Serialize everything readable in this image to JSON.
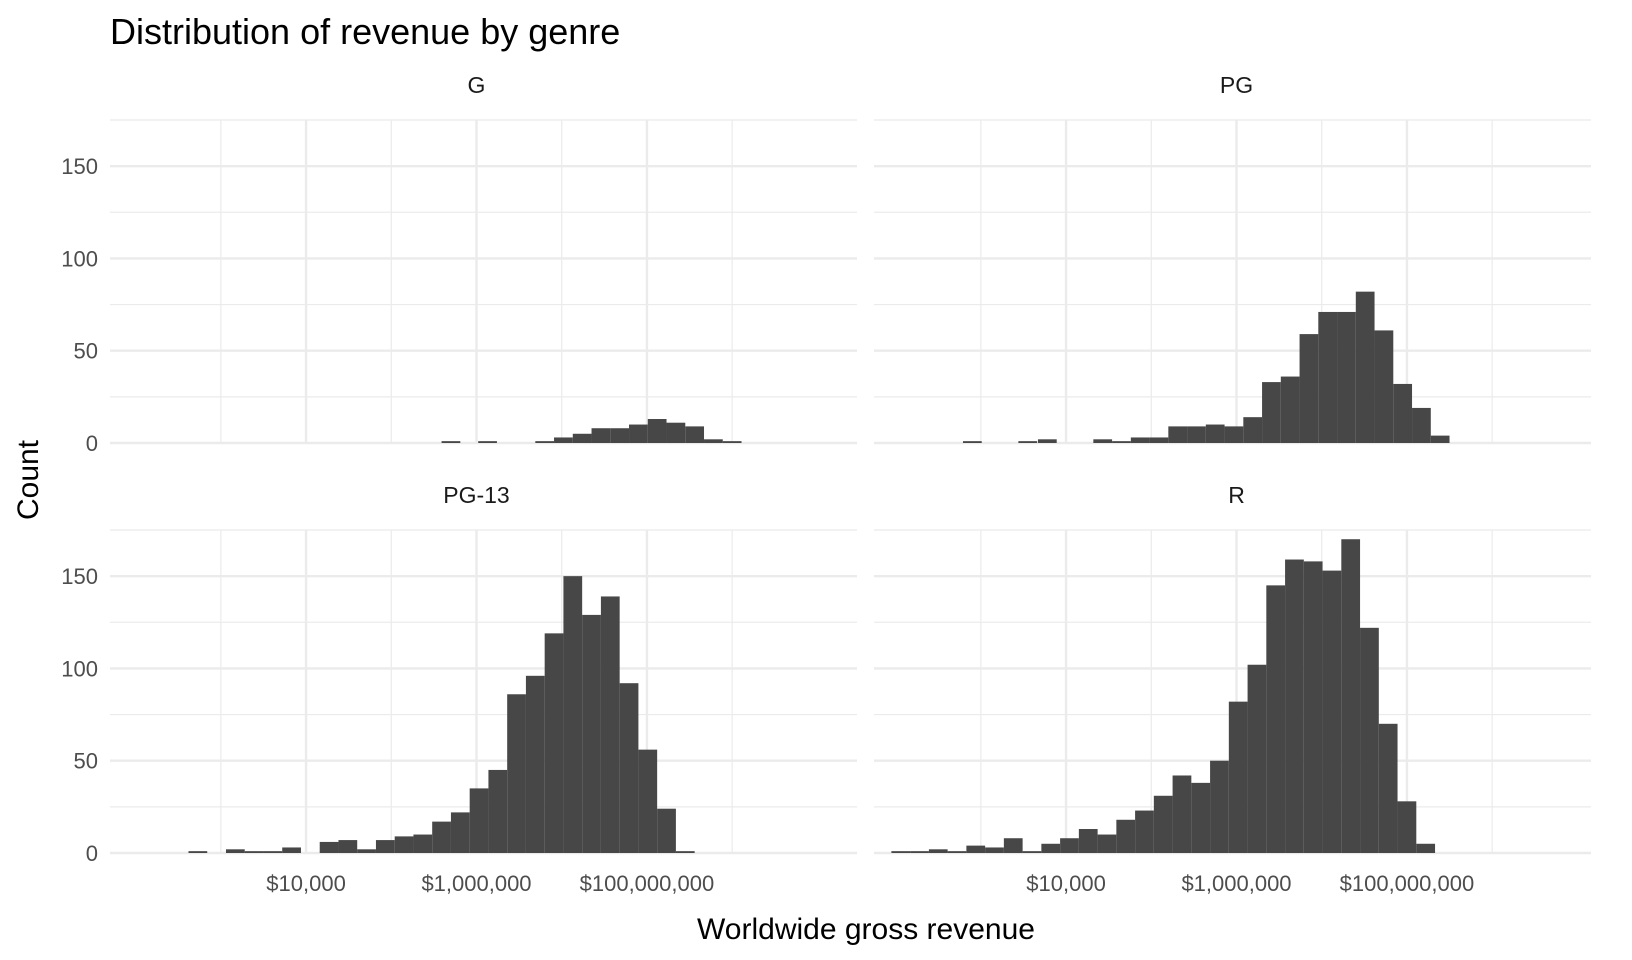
{
  "chart_data": {
    "type": "bar",
    "title": "Distribution of revenue by genre",
    "xlabel": "Worldwide gross revenue",
    "ylabel": "Count",
    "x_scale": "log10",
    "xlim": [
      50,
      20000000000
    ],
    "ylim": [
      0,
      175
    ],
    "y_ticks": [
      0,
      50,
      100,
      150
    ],
    "x_ticks": [
      {
        "value": 10000,
        "label": "$10,000"
      },
      {
        "value": 1000000,
        "label": "$1,000,000"
      },
      {
        "value": 100000000,
        "label": "$100,000,000"
      }
    ],
    "bin_log10_width": 0.22,
    "grid": true,
    "facets": [
      {
        "label": "G",
        "bins": [
          {
            "x_log10": 5.7,
            "count": 1
          },
          {
            "x_log10": 6.13,
            "count": 1
          },
          {
            "x_log10": 6.8,
            "count": 1
          },
          {
            "x_log10": 7.02,
            "count": 3
          },
          {
            "x_log10": 7.24,
            "count": 5
          },
          {
            "x_log10": 7.46,
            "count": 8
          },
          {
            "x_log10": 7.68,
            "count": 8
          },
          {
            "x_log10": 7.9,
            "count": 10
          },
          {
            "x_log10": 8.12,
            "count": 13
          },
          {
            "x_log10": 8.34,
            "count": 11
          },
          {
            "x_log10": 8.56,
            "count": 9
          },
          {
            "x_log10": 8.78,
            "count": 2
          },
          {
            "x_log10": 9.0,
            "count": 1
          }
        ]
      },
      {
        "label": "PG",
        "bins": [
          {
            "x_log10": 2.9,
            "count": 1
          },
          {
            "x_log10": 3.55,
            "count": 1
          },
          {
            "x_log10": 3.78,
            "count": 2
          },
          {
            "x_log10": 4.43,
            "count": 2
          },
          {
            "x_log10": 4.65,
            "count": 1
          },
          {
            "x_log10": 4.87,
            "count": 3
          },
          {
            "x_log10": 5.09,
            "count": 3
          },
          {
            "x_log10": 5.31,
            "count": 9
          },
          {
            "x_log10": 5.53,
            "count": 9
          },
          {
            "x_log10": 5.75,
            "count": 10
          },
          {
            "x_log10": 5.97,
            "count": 9
          },
          {
            "x_log10": 6.19,
            "count": 14
          },
          {
            "x_log10": 6.41,
            "count": 33
          },
          {
            "x_log10": 6.63,
            "count": 36
          },
          {
            "x_log10": 6.85,
            "count": 59
          },
          {
            "x_log10": 7.07,
            "count": 71
          },
          {
            "x_log10": 7.29,
            "count": 71
          },
          {
            "x_log10": 7.51,
            "count": 82
          },
          {
            "x_log10": 7.73,
            "count": 61
          },
          {
            "x_log10": 7.95,
            "count": 32
          },
          {
            "x_log10": 8.17,
            "count": 19
          },
          {
            "x_log10": 8.39,
            "count": 4
          }
        ]
      },
      {
        "label": "PG-13",
        "bins": [
          {
            "x_log10": 2.73,
            "count": 1
          },
          {
            "x_log10": 3.17,
            "count": 2
          },
          {
            "x_log10": 3.39,
            "count": 1
          },
          {
            "x_log10": 3.61,
            "count": 1
          },
          {
            "x_log10": 3.83,
            "count": 3
          },
          {
            "x_log10": 4.27,
            "count": 6
          },
          {
            "x_log10": 4.49,
            "count": 7
          },
          {
            "x_log10": 4.71,
            "count": 2
          },
          {
            "x_log10": 4.93,
            "count": 7
          },
          {
            "x_log10": 5.15,
            "count": 9
          },
          {
            "x_log10": 5.37,
            "count": 10
          },
          {
            "x_log10": 5.59,
            "count": 17
          },
          {
            "x_log10": 5.81,
            "count": 22
          },
          {
            "x_log10": 6.03,
            "count": 35
          },
          {
            "x_log10": 6.25,
            "count": 45
          },
          {
            "x_log10": 6.47,
            "count": 86
          },
          {
            "x_log10": 6.69,
            "count": 96
          },
          {
            "x_log10": 6.91,
            "count": 119
          },
          {
            "x_log10": 7.13,
            "count": 150
          },
          {
            "x_log10": 7.35,
            "count": 129
          },
          {
            "x_log10": 7.57,
            "count": 139
          },
          {
            "x_log10": 7.79,
            "count": 92
          },
          {
            "x_log10": 8.01,
            "count": 56
          },
          {
            "x_log10": 8.23,
            "count": 24
          },
          {
            "x_log10": 8.45,
            "count": 1
          }
        ]
      },
      {
        "label": "R",
        "bins": [
          {
            "x_log10": 2.06,
            "count": 1
          },
          {
            "x_log10": 2.28,
            "count": 1
          },
          {
            "x_log10": 2.5,
            "count": 2
          },
          {
            "x_log10": 2.72,
            "count": 1
          },
          {
            "x_log10": 2.94,
            "count": 4
          },
          {
            "x_log10": 3.16,
            "count": 3
          },
          {
            "x_log10": 3.38,
            "count": 8
          },
          {
            "x_log10": 3.6,
            "count": 1
          },
          {
            "x_log10": 3.82,
            "count": 5
          },
          {
            "x_log10": 4.04,
            "count": 8
          },
          {
            "x_log10": 4.26,
            "count": 13
          },
          {
            "x_log10": 4.48,
            "count": 10
          },
          {
            "x_log10": 4.7,
            "count": 18
          },
          {
            "x_log10": 4.92,
            "count": 23
          },
          {
            "x_log10": 5.14,
            "count": 31
          },
          {
            "x_log10": 5.36,
            "count": 42
          },
          {
            "x_log10": 5.58,
            "count": 38
          },
          {
            "x_log10": 5.8,
            "count": 50
          },
          {
            "x_log10": 6.02,
            "count": 82
          },
          {
            "x_log10": 6.24,
            "count": 102
          },
          {
            "x_log10": 6.46,
            "count": 145
          },
          {
            "x_log10": 6.68,
            "count": 159
          },
          {
            "x_log10": 6.9,
            "count": 158
          },
          {
            "x_log10": 7.12,
            "count": 153
          },
          {
            "x_log10": 7.34,
            "count": 170
          },
          {
            "x_log10": 7.56,
            "count": 122
          },
          {
            "x_log10": 7.78,
            "count": 70
          },
          {
            "x_log10": 8.0,
            "count": 28
          },
          {
            "x_log10": 8.22,
            "count": 5
          }
        ]
      }
    ]
  }
}
